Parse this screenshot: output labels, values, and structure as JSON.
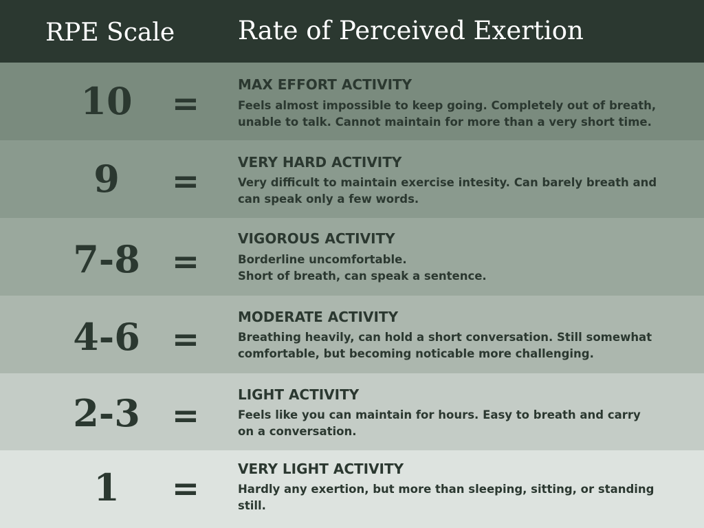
{
  "header": {
    "left_title": "RPE Scale",
    "right_title": "Rate of Perceived Exertion"
  },
  "equals": "=",
  "rows": [
    {
      "rating": "10",
      "title": "MAX EFFORT ACTIVITY",
      "line1": "Feels almost impossible to keep going. Completely out of breath,",
      "line2": "unable to talk. Cannot maintain for more than a very short time."
    },
    {
      "rating": "9",
      "title": "VERY HARD ACTIVITY",
      "line1": "Very difficult to maintain exercise intesity. Can barely breath and",
      "line2": "can speak only a few words."
    },
    {
      "rating": "7-8",
      "title": "VIGOROUS ACTIVITY",
      "line1": "Borderline uncomfortable.",
      "line2": "Short of breath, can speak a sentence."
    },
    {
      "rating": "4-6",
      "title": "MODERATE ACTIVITY",
      "line1": "Breathing heavily, can hold a short conversation. Still somewhat",
      "line2": "comfortable, but becoming noticable more challenging."
    },
    {
      "rating": "2-3",
      "title": "LIGHT ACTIVITY",
      "line1": "Feels like you can maintain for hours. Easy to breath and carry",
      "line2": "on a conversation."
    },
    {
      "rating": "1",
      "title": "VERY LIGHT ACTIVITY",
      "line1": "Hardly any exertion, but more than sleeping, sitting, or standing",
      "line2": "still."
    }
  ],
  "colors": {
    "header_bg": "#2b3830",
    "text_dark": "#2b3830",
    "row_backgrounds": [
      "#7a8b7e",
      "#8a9a8e",
      "#9aa89d",
      "#acb7ae",
      "#c4ccc6",
      "#dde3df"
    ]
  }
}
